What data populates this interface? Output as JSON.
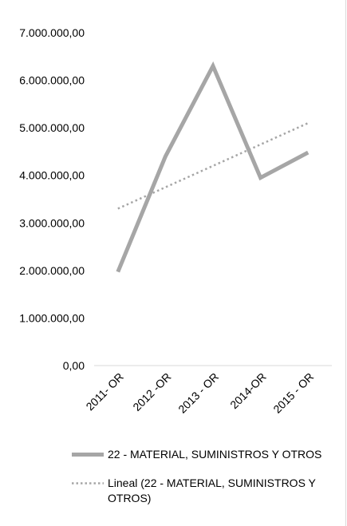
{
  "chart_data": {
    "type": "line",
    "title": "",
    "xlabel": "",
    "ylabel": "",
    "categories": [
      "2011- OR",
      "2012 -OR",
      "2013 - OR",
      "2014-OR",
      "2015 - OR"
    ],
    "ylim": [
      0,
      7000000
    ],
    "ytick_values": [
      0,
      1000000,
      2000000,
      3000000,
      4000000,
      5000000,
      6000000,
      7000000
    ],
    "ytick_labels": [
      "0,00",
      "1.000.000,00",
      "2.000.000,00",
      "3.000.000,00",
      "4.000.000,00",
      "5.000.000,00",
      "6.000.000,00",
      "7.000.000,00"
    ],
    "grid": false,
    "legend_position": "bottom",
    "series": [
      {
        "name": "22 - MATERIAL, SUMINISTROS Y OTROS",
        "values": [
          1970000,
          4400000,
          6300000,
          3950000,
          4480000
        ],
        "color": "#a6a6a6",
        "style": "solid"
      },
      {
        "name": "Lineal (22 - MATERIAL, SUMINISTROS Y OTROS)",
        "values": [
          3300000,
          3750000,
          4200000,
          4650000,
          5100000
        ],
        "color": "#a6a6a6",
        "style": "dotted"
      }
    ]
  }
}
